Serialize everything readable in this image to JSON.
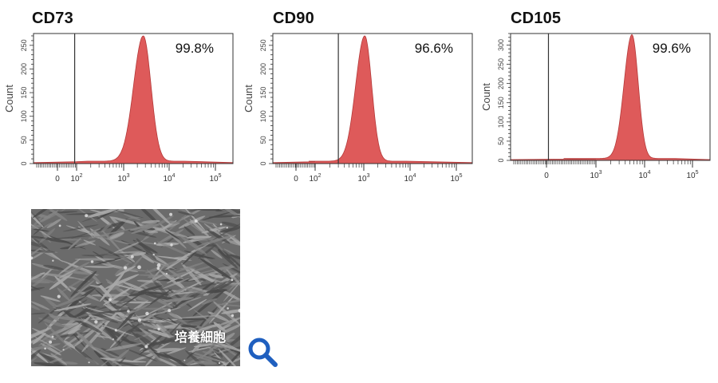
{
  "chart_data": [
    {
      "type": "area",
      "title": "CD73",
      "annotation": "99.8%",
      "ylabel": "Count",
      "xscale": "biexponential",
      "x_tick_labels": [
        "0",
        "10^2",
        "10^3",
        "10^4",
        "10^5"
      ],
      "y_tick_labels": [
        "0",
        "50",
        "100",
        "150",
        "200",
        "250"
      ],
      "ylim": [
        0,
        275
      ],
      "gate": 90,
      "peak_x": 2700,
      "peak_y": 265,
      "width": 0.17,
      "fill": "#de5a5a"
    },
    {
      "type": "area",
      "title": "CD90",
      "annotation": "96.6%",
      "ylabel": "Count",
      "xscale": "biexponential",
      "x_tick_labels": [
        "0",
        "10^2",
        "10^3",
        "10^4",
        "10^5"
      ],
      "y_tick_labels": [
        "0",
        "50",
        "100",
        "150",
        "200",
        "250"
      ],
      "ylim": [
        0,
        275
      ],
      "gate": 300,
      "peak_x": 1050,
      "peak_y": 265,
      "width": 0.15,
      "fill": "#de5a5a"
    },
    {
      "type": "area",
      "title": "CD105",
      "annotation": "99.6%",
      "ylabel": "Count",
      "xscale": "biexponential",
      "x_tick_labels": [
        "0",
        "10^3",
        "10^4",
        "10^5"
      ],
      "y_tick_labels": [
        "0",
        "50",
        "100",
        "150",
        "200",
        "250",
        "300"
      ],
      "ylim": [
        0,
        330
      ],
      "gate": 40,
      "peak_x": 5500,
      "peak_y": 322,
      "width": 0.13,
      "fill": "#de5a5a"
    }
  ],
  "micrograph": {
    "label": "培養細胞"
  },
  "zoom_button": {
    "icon": "magnifier-icon",
    "color": "#1f5fbf"
  }
}
